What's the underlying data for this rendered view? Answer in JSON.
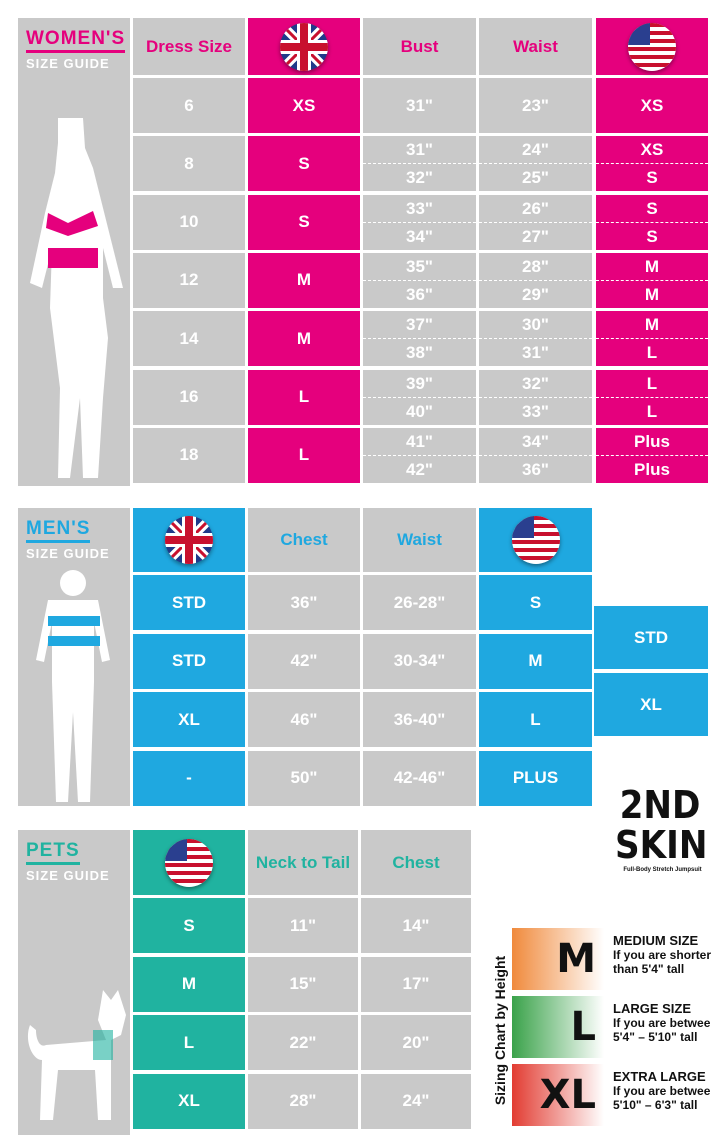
{
  "women": {
    "title": "WOMEN'S",
    "subtitle": "SIZE GUIDE",
    "headers": {
      "dress": "Dress Size",
      "uk_flag": "uk-flag-icon",
      "bust": "Bust",
      "waist": "Waist",
      "us_flag": "us-flag-icon"
    },
    "rows": [
      {
        "dress": "6",
        "uk": "XS",
        "bust": [
          "31\""
        ],
        "waist": [
          "23\""
        ],
        "us": [
          "XS"
        ]
      },
      {
        "dress": "8",
        "uk": "S",
        "bust": [
          "31\"",
          "32\""
        ],
        "waist": [
          "24\"",
          "25\""
        ],
        "us": [
          "XS",
          "S"
        ]
      },
      {
        "dress": "10",
        "uk": "S",
        "bust": [
          "33\"",
          "34\""
        ],
        "waist": [
          "26\"",
          "27\""
        ],
        "us": [
          "S",
          "S"
        ]
      },
      {
        "dress": "12",
        "uk": "M",
        "bust": [
          "35\"",
          "36\""
        ],
        "waist": [
          "28\"",
          "29\""
        ],
        "us": [
          "M",
          "M"
        ]
      },
      {
        "dress": "14",
        "uk": "M",
        "bust": [
          "37\"",
          "38\""
        ],
        "waist": [
          "30\"",
          "31\""
        ],
        "us": [
          "M",
          "L"
        ]
      },
      {
        "dress": "16",
        "uk": "L",
        "bust": [
          "39\"",
          "40\""
        ],
        "waist": [
          "32\"",
          "33\""
        ],
        "us": [
          "L",
          "L"
        ]
      },
      {
        "dress": "18",
        "uk": "L",
        "bust": [
          "41\"",
          "42\""
        ],
        "waist": [
          "34\"",
          "36\""
        ],
        "us": [
          "Plus",
          "Plus"
        ]
      }
    ]
  },
  "men": {
    "title": "MEN'S",
    "subtitle": "SIZE GUIDE",
    "headers": {
      "chest": "Chest",
      "waist": "Waist"
    },
    "rows": [
      {
        "uk": "STD",
        "chest": "36\"",
        "waist": "26-28\"",
        "us": "S"
      },
      {
        "uk": "STD",
        "chest": "42\"",
        "waist": "30-34\"",
        "us": "M"
      },
      {
        "uk": "XL",
        "chest": "46\"",
        "waist": "36-40\"",
        "us": "L"
      },
      {
        "uk": "-",
        "chest": "50\"",
        "waist": "42-46\"",
        "us": "PLUS"
      }
    ],
    "extra": [
      "STD",
      "XL"
    ]
  },
  "pets": {
    "title": "PETS",
    "subtitle": "SIZE GUIDE",
    "headers": {
      "neck": "Neck to Tail",
      "chest": "Chest"
    },
    "rows": [
      {
        "size": "S",
        "neck": "11\"",
        "chest": "14\""
      },
      {
        "size": "M",
        "neck": "15\"",
        "chest": "17\""
      },
      {
        "size": "L",
        "neck": "22\"",
        "chest": "20\""
      },
      {
        "size": "XL",
        "neck": "28\"",
        "chest": "24\""
      }
    ]
  },
  "brand": {
    "logo": "2ND SKIN",
    "tagline": "Full-Body Stretch Jumpsuit"
  },
  "height_chart": {
    "title": "Sizing Chart by Height",
    "items": [
      {
        "letter": "M",
        "label": "MEDIUM SIZE",
        "desc": "If you are shorter than 5'4\" tall",
        "color": "#f08a3c"
      },
      {
        "letter": "L",
        "label": "LARGE SIZE",
        "desc": "If you are betwee 5'4\" – 5'10\" tall",
        "color": "#3aa24a"
      },
      {
        "letter": "XL",
        "label": "EXTRA LARGE",
        "desc": "If you are betwee 5'10\" – 6'3\" tall",
        "color": "#e23c32"
      }
    ]
  },
  "colors": {
    "women": "#e5007d",
    "men": "#1fa8e0",
    "pets": "#20b3a0",
    "cell": "#c9c9c9"
  }
}
